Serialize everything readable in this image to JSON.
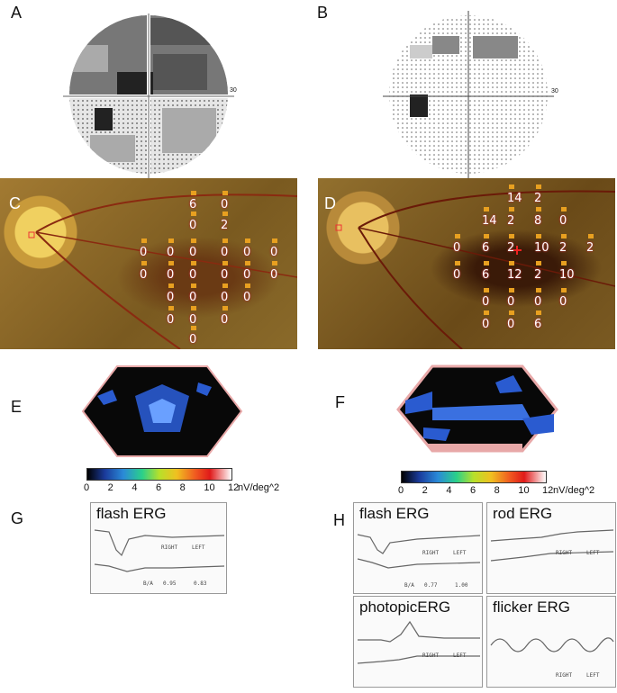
{
  "panels": {
    "A": "A",
    "B": "B",
    "C": "C",
    "D": "D",
    "E": "E",
    "F": "F",
    "G": "G",
    "H": "H"
  },
  "visual_field": {
    "scale_label_A": "30",
    "scale_label_B": "30"
  },
  "microperimetry_C": [
    "6",
    "0",
    "0",
    "2",
    "0",
    "0",
    "0",
    "0",
    "0",
    "0",
    "0",
    "0",
    "0",
    "0",
    "0",
    "0",
    "0",
    "0",
    "0",
    "0",
    "0",
    "0",
    "0",
    "0"
  ],
  "microperimetry_D": [
    "14",
    "2",
    "14",
    "2",
    "8",
    "0",
    "0",
    "6",
    "2",
    "10",
    "2",
    "2",
    "0",
    "6",
    "12",
    "2",
    "10",
    "0",
    "0",
    "0",
    "0",
    "0",
    "0",
    "6"
  ],
  "colorbar": {
    "ticks": [
      "0",
      "2",
      "4",
      "6",
      "8",
      "10",
      "12"
    ],
    "unit": "nV/deg^2"
  },
  "erg": {
    "G_title": "flash ERG",
    "H_flash": "flash ERG",
    "H_rod": "rod ERG",
    "H_photopic": "photopicERG",
    "H_flicker": "flicker ERG",
    "right": "RIGHT",
    "left": "LEFT",
    "ratio_label": "B/A",
    "G_ratio_right": "0.95",
    "G_ratio_left": "0.83",
    "H_ratio_right": "0.77",
    "H_ratio_left": "1.00"
  },
  "colors": {
    "fundus_bg": "#8a6a2a",
    "erg_trace": "#666666",
    "hex_blue": "#2a5bd0"
  }
}
